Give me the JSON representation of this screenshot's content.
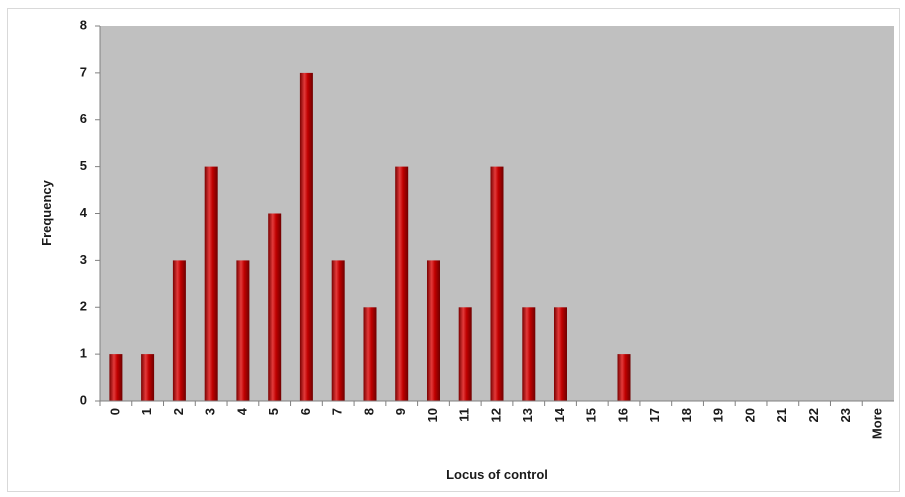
{
  "chart_data": {
    "type": "bar",
    "title": "",
    "xlabel": "Locus of control",
    "ylabel": "Frequency",
    "categories": [
      "0",
      "1",
      "2",
      "3",
      "4",
      "5",
      "6",
      "7",
      "8",
      "9",
      "10",
      "11",
      "12",
      "13",
      "14",
      "15",
      "16",
      "17",
      "18",
      "19",
      "20",
      "21",
      "22",
      "23",
      "More"
    ],
    "values": [
      1,
      1,
      3,
      5,
      3,
      4,
      7,
      3,
      2,
      5,
      3,
      2,
      5,
      2,
      2,
      0,
      1,
      0,
      0,
      0,
      0,
      0,
      0,
      0,
      0
    ],
    "ylim": [
      0,
      8
    ],
    "yticks": [
      "0",
      "1",
      "2",
      "3",
      "4",
      "5",
      "6",
      "7",
      "8"
    ],
    "grid": false,
    "legend": "none",
    "colors": {
      "bar": "#c00000",
      "bar_dark": "#7a0000",
      "bar_light": "#e23a3a",
      "plot_bg": "#c0c0c0"
    }
  }
}
